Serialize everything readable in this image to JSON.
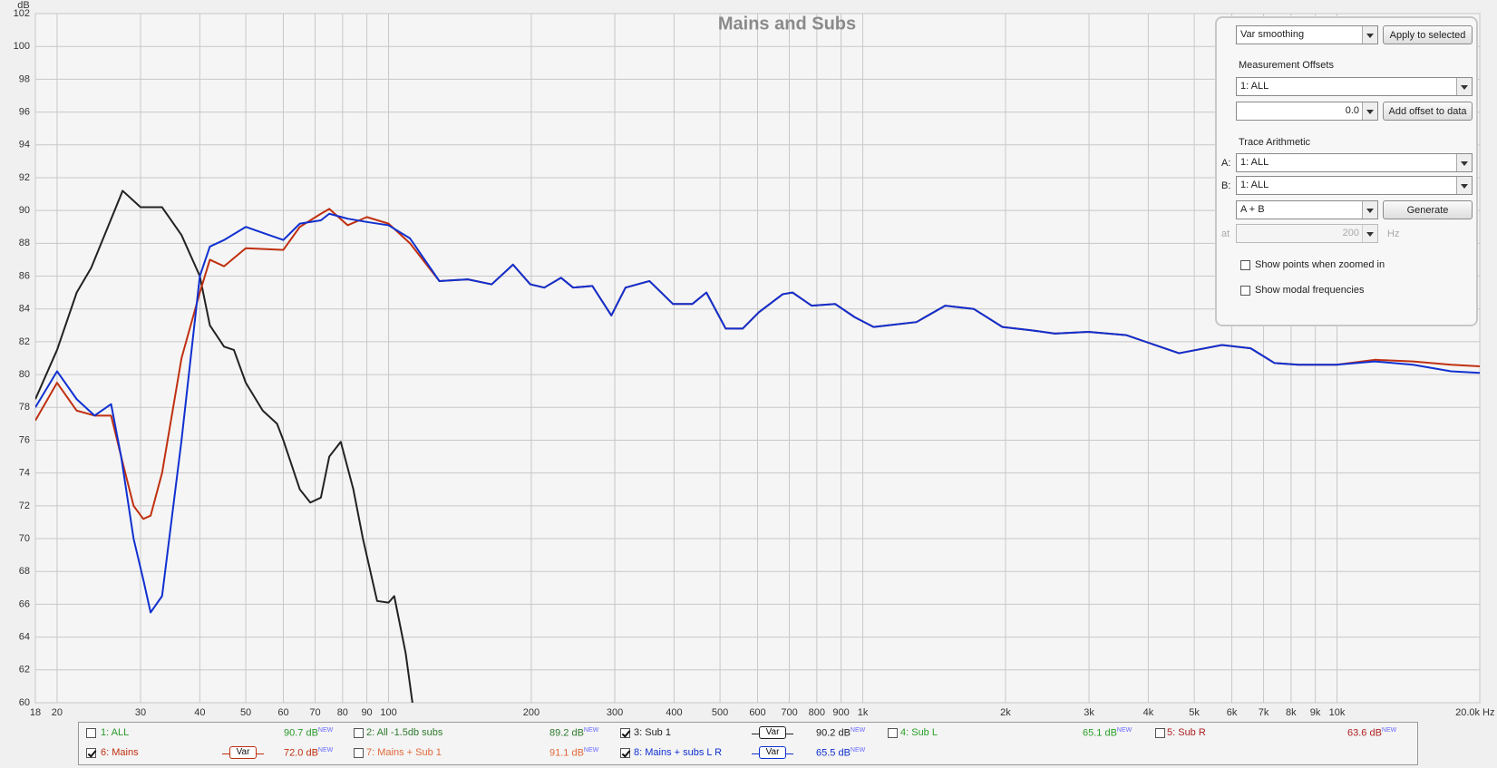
{
  "chart_data": {
    "type": "line",
    "title": "Mains and Subs",
    "xlabel": "Hz",
    "ylabel": "dB",
    "xscale": "log",
    "grid": true,
    "xlim": [
      18,
      20000
    ],
    "ylim": [
      60,
      102
    ],
    "xticks": [
      18,
      20,
      30,
      40,
      50,
      60,
      70,
      80,
      90,
      100,
      200,
      300,
      400,
      500,
      600,
      700,
      800,
      900,
      {
        "value": 1000,
        "label": "1k"
      },
      {
        "value": 2000,
        "label": "2k"
      },
      {
        "value": 3000,
        "label": "3k"
      },
      {
        "value": 4000,
        "label": "4k"
      },
      {
        "value": 5000,
        "label": "5k"
      },
      {
        "value": 6000,
        "label": "6k"
      },
      {
        "value": 7000,
        "label": "7k"
      },
      {
        "value": 8000,
        "label": "8k"
      },
      {
        "value": 9000,
        "label": "9k"
      },
      {
        "value": 10000,
        "label": "10k"
      },
      {
        "value": 20000,
        "label": "20.0k"
      }
    ],
    "yticks": [
      60,
      62,
      64,
      66,
      68,
      70,
      72,
      74,
      76,
      78,
      80,
      82,
      84,
      86,
      88,
      90,
      92,
      94,
      96,
      98,
      100,
      102
    ],
    "series": [
      {
        "color": "#222222",
        "x": [
          18,
          20,
          22,
          23.6,
          27.5,
          30,
          33.3,
          36.6,
          40,
          42,
          45,
          47.2,
          50,
          54.3,
          58.2,
          60,
          65,
          68.4,
          72,
          75,
          79.3,
          84.3,
          88.3,
          94.6,
          100,
          102.8,
          108.7,
          112.3
        ],
        "values": [
          78.5,
          81.5,
          85,
          86.5,
          91.2,
          90.2,
          90.2,
          88.5,
          86,
          83,
          81.7,
          81.5,
          79.5,
          77.8,
          77,
          76,
          73,
          72.2,
          72.5,
          75,
          75.9,
          73,
          70,
          66.2,
          66.1,
          66.5,
          63,
          60
        ]
      },
      {
        "color": "#c03010",
        "x": [
          18,
          20,
          22,
          24,
          26,
          27.3,
          29,
          30.4,
          31.5,
          33.3,
          36.6,
          40,
          42,
          45,
          50,
          60,
          65,
          72,
          75,
          82,
          90,
          100,
          111,
          128,
          147,
          165,
          183,
          199,
          213,
          231,
          245,
          269,
          295,
          316,
          355,
          398,
          437,
          468,
          514,
          558,
          604,
          678,
          711,
          780,
          875,
          961,
          1054,
          1298,
          1492,
          1714,
          1970,
          2264,
          2541,
          2990,
          3598,
          4644,
          5720,
          6575,
          7383,
          8289,
          9976,
          12008,
          14458,
          17400,
          20000
        ],
        "values": [
          77.2,
          79.5,
          77.8,
          77.5,
          77.5,
          75,
          72,
          71.2,
          71.4,
          74,
          81,
          85,
          87,
          86.6,
          87.7,
          87.6,
          89,
          89.8,
          90.1,
          89.1,
          89.6,
          89.2,
          88,
          85.7,
          85.8,
          85.5,
          86.7,
          85.5,
          85.3,
          85.9,
          85.3,
          85.4,
          83.6,
          85.3,
          85.7,
          84.3,
          84.3,
          85,
          82.8,
          82.8,
          83.8,
          84.9,
          85,
          84.2,
          84.3,
          83.5,
          82.9,
          83.2,
          84.2,
          84,
          82.9,
          82.7,
          82.5,
          82.6,
          82.4,
          81.3,
          81.8,
          81.6,
          80.7,
          80.6,
          80.6,
          80.9,
          80.8,
          80.6,
          80.5
        ]
      },
      {
        "color": "#1030d0",
        "x": [
          18,
          20,
          22,
          24,
          26,
          27.3,
          29,
          30.4,
          31.5,
          33.3,
          36.6,
          40,
          42,
          45,
          50,
          60,
          65,
          72,
          75,
          82,
          90,
          100,
          111,
          128,
          147,
          165,
          183,
          199,
          213,
          231,
          245,
          269,
          295,
          316,
          355,
          398,
          437,
          468,
          514,
          558,
          604,
          678,
          711,
          780,
          875,
          961,
          1054,
          1298,
          1492,
          1714,
          1970,
          2264,
          2541,
          2990,
          3598,
          4644,
          5720,
          6575,
          7383,
          8289,
          9976,
          12008,
          14458,
          17400,
          20000
        ],
        "values": [
          78,
          80.2,
          78.5,
          77.5,
          78.2,
          75,
          70,
          67.5,
          65.5,
          66.5,
          76,
          86,
          87.8,
          88.2,
          89,
          88.2,
          89.2,
          89.4,
          89.8,
          89.5,
          89.3,
          89.1,
          88.3,
          85.7,
          85.8,
          85.5,
          86.7,
          85.5,
          85.3,
          85.9,
          85.3,
          85.4,
          83.6,
          85.3,
          85.7,
          84.3,
          84.3,
          85,
          82.8,
          82.8,
          83.8,
          84.9,
          85,
          84.2,
          84.3,
          83.5,
          82.9,
          83.2,
          84.2,
          84,
          82.9,
          82.7,
          82.5,
          82.6,
          82.4,
          81.3,
          81.8,
          81.6,
          80.7,
          80.6,
          80.6,
          80.8,
          80.6,
          80.2,
          80.1
        ]
      }
    ],
    "legend": [
      {
        "name": "1: ALL",
        "level": "90.7 dB",
        "badge": "NEW",
        "checked": false,
        "color": "#2a9a2a"
      },
      {
        "name": "2: All -1.5db subs",
        "level": "89.2 dB",
        "badge": "NEW",
        "checked": false,
        "color": "#2d7a2d"
      },
      {
        "name": "3: Sub 1",
        "level": "90.2 dB",
        "badge": "NEW",
        "checked": true,
        "color": "#222222",
        "smoothing": "Var"
      },
      {
        "name": "4: Sub L",
        "level": "65.1 dB",
        "badge": "NEW",
        "checked": false,
        "color": "#2aa02a"
      },
      {
        "name": "5: Sub R",
        "level": "63.6 dB",
        "badge": "NEW",
        "checked": false,
        "color": "#b02020"
      },
      {
        "name": "6: Mains",
        "level": "72.0 dB",
        "badge": "NEW",
        "checked": true,
        "color": "#c03010",
        "smoothing": "Var"
      },
      {
        "name": "7: Mains + Sub 1",
        "level": "91.1 dB",
        "badge": "NEW",
        "checked": false,
        "color": "#e06a3a"
      },
      {
        "name": "8: Mains + subs L R",
        "level": "65.5 dB",
        "badge": "NEW",
        "checked": true,
        "color": "#1030d0",
        "smoothing": "Var"
      }
    ]
  },
  "controls": {
    "smoothing": "Var smoothing",
    "apply": "Apply to selected",
    "offsets_title": "Measurement Offsets",
    "offset_measurement": "1: ALL",
    "offset_value": "0.0",
    "add_offset": "Add offset to data",
    "arithmetic_title": "Trace Arithmetic",
    "a_label": "A:",
    "a_value": "1: ALL",
    "b_label": "B:",
    "b_value": "1: ALL",
    "operation": "A + B",
    "generate": "Generate",
    "at_label": "at",
    "at_value": "200",
    "at_unit": "Hz",
    "show_points": "Show points when zoomed in",
    "show_modal": "Show modal frequencies"
  }
}
